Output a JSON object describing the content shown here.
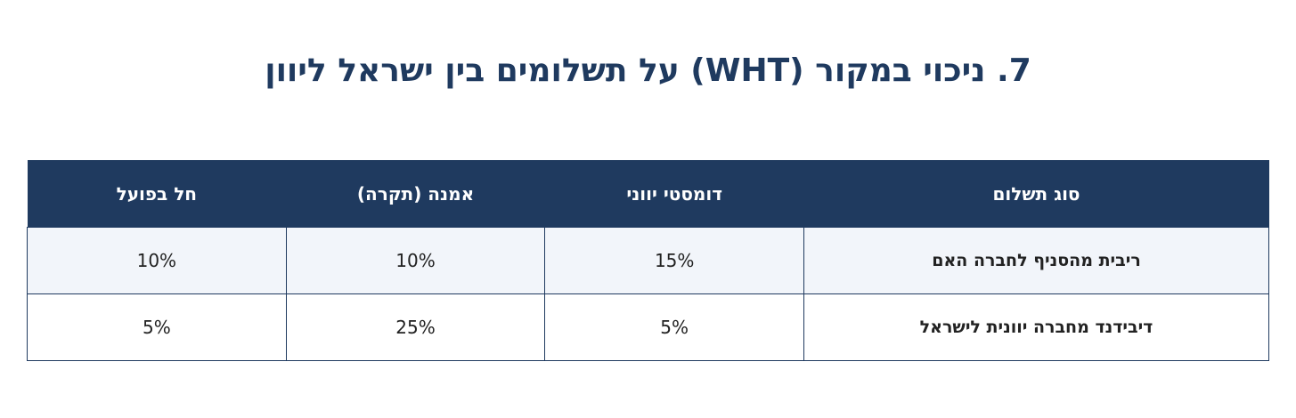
{
  "header": {
    "title": "7. ניכוי במקור (WHT) על תשלומים בין ישראל ליוון"
  },
  "table": {
    "columns": [
      "סוג תשלום",
      "דומסטי יווני",
      "אמנה (תקרה)",
      "חל בפועל"
    ],
    "rows": [
      [
        "ריבית מהסניף לחברה האם",
        "15%",
        "10%",
        "10%"
      ],
      [
        "דיבידנד מחברה יוונית לישראל",
        "5%",
        "25%",
        "5%"
      ]
    ]
  }
}
